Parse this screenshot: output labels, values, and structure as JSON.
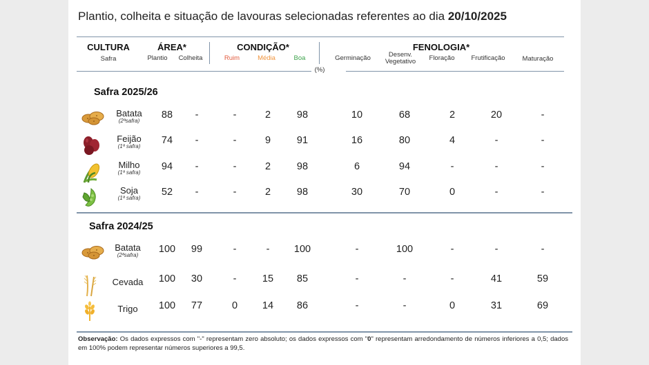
{
  "title": {
    "text": "Plantio, colheita e situação de lavouras selecionadas referentes ao dia ",
    "date": "20/10/2025"
  },
  "header": {
    "cultura": "CULTURA",
    "safra": "Safra",
    "area": "ÁREA*",
    "plantio": "Plantio",
    "colheita": "Colheita",
    "condicao": "CONDIÇÃO*",
    "ruim": "Ruim",
    "media": "Média",
    "boa": "Boa",
    "percent": "(%)",
    "fenologia": "FENOLOGIA*",
    "germinacao": "Germinação",
    "desenv_1": "Desenv.",
    "desenv_2": "Vegetativo",
    "floracao": "Floração",
    "frutificacao": "Frutificação",
    "maturacao": "Maturação"
  },
  "colors": {
    "ruim": "#e25a3c",
    "media": "#f0953f",
    "boa": "#3fa34d",
    "rule": "#7f93a8"
  },
  "sections": [
    {
      "title": "Safra 2025/26",
      "rows": [
        {
          "crop": "Batata",
          "note": "(2ªsafra)",
          "icon": "potato-icon",
          "plantio": "88",
          "colheita": "-",
          "ruim": "-",
          "media": "2",
          "boa": "98",
          "germinacao": "10",
          "desenv": "68",
          "floracao": "2",
          "frutificacao": "20",
          "maturacao": "-"
        },
        {
          "crop": "Feijão",
          "note": "(1ª safra)",
          "icon": "beans-icon",
          "plantio": "74",
          "colheita": "-",
          "ruim": "-",
          "media": "9",
          "boa": "91",
          "germinacao": "16",
          "desenv": "80",
          "floracao": "4",
          "frutificacao": "-",
          "maturacao": "-"
        },
        {
          "crop": "Milho",
          "note": "(1ª safra)",
          "icon": "corn-icon",
          "plantio": "94",
          "colheita": "-",
          "ruim": "-",
          "media": "2",
          "boa": "98",
          "germinacao": "6",
          "desenv": "94",
          "floracao": "-",
          "frutificacao": "-",
          "maturacao": "-"
        },
        {
          "crop": "Soja",
          "note": "(1ª safra)",
          "icon": "soybean-icon",
          "plantio": "52",
          "colheita": "-",
          "ruim": "-",
          "media": "2",
          "boa": "98",
          "germinacao": "30",
          "desenv": "70",
          "floracao": "0",
          "frutificacao": "-",
          "maturacao": "-"
        }
      ]
    },
    {
      "title": "Safra 2024/25",
      "rows": [
        {
          "crop": "Batata",
          "note": "(2ªsafra)",
          "icon": "potato-icon",
          "plantio": "100",
          "colheita": "99",
          "ruim": "-",
          "media": "-",
          "boa": "100",
          "germinacao": "-",
          "desenv": "100",
          "floracao": "-",
          "frutificacao": "-",
          "maturacao": "-"
        },
        {
          "crop": "Cevada",
          "note": "",
          "icon": "barley-icon",
          "plantio": "100",
          "colheita": "30",
          "ruim": "-",
          "media": "15",
          "boa": "85",
          "germinacao": "-",
          "desenv": "-",
          "floracao": "-",
          "frutificacao": "41",
          "maturacao": "59"
        },
        {
          "crop": "Trigo",
          "note": "",
          "icon": "wheat-icon",
          "plantio": "100",
          "colheita": "77",
          "ruim": "0",
          "media": "14",
          "boa": "86",
          "germinacao": "-",
          "desenv": "-",
          "floracao": "0",
          "frutificacao": "31",
          "maturacao": "69"
        }
      ]
    }
  ],
  "observacao": {
    "label": "Observação:",
    "text_1": " Os dados expressos com \"-\" representam zero absoluto; os dados expressos com \"",
    "zero": "0",
    "text_2": "\" representam arredondamento de números inferiores a 0,5; dados em 100% podem representar números superiores a 99,5."
  }
}
